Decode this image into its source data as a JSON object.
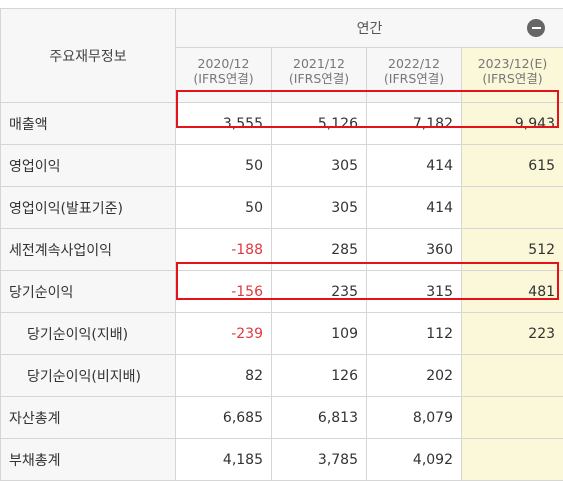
{
  "table": {
    "corner_label": "주요재무정보",
    "group_label": "연간",
    "periods": [
      {
        "year": "2020/12",
        "basis": "(IFRS연결)"
      },
      {
        "year": "2021/12",
        "basis": "(IFRS연결)"
      },
      {
        "year": "2022/12",
        "basis": "(IFRS연결)"
      },
      {
        "year": "2023/12(E)",
        "basis": "(IFRS연결)"
      }
    ],
    "rows": [
      {
        "label": "매출액",
        "values": [
          "3,555",
          "5,126",
          "7,182",
          "9,943"
        ]
      },
      {
        "label": "영업이익",
        "values": [
          "50",
          "305",
          "414",
          "615"
        ]
      },
      {
        "label": "영업이익(발표기준)",
        "values": [
          "50",
          "305",
          "414",
          ""
        ]
      },
      {
        "label": "세전계속사업이익",
        "values": [
          "-188",
          "285",
          "360",
          "512"
        ]
      },
      {
        "label": "당기순이익",
        "values": [
          "-156",
          "235",
          "315",
          "481"
        ]
      },
      {
        "label": "당기순이익(지배)",
        "values": [
          "-239",
          "109",
          "112",
          "223"
        ]
      },
      {
        "label": "당기순이익(비지배)",
        "values": [
          "82",
          "126",
          "202",
          ""
        ]
      },
      {
        "label": "자산총계",
        "values": [
          "6,685",
          "6,813",
          "8,079",
          ""
        ]
      },
      {
        "label": "부채총계",
        "values": [
          "4,185",
          "3,785",
          "4,092",
          ""
        ]
      }
    ]
  },
  "colors": {
    "header_bg": "#f7f7f7",
    "estimate_bg": "#fbf7d9",
    "negative": "#e0393e",
    "highlight_box": "#e5121c",
    "border": "#d6d6d6"
  },
  "highlighted_rows": [
    "매출액",
    "당기순이익"
  ]
}
